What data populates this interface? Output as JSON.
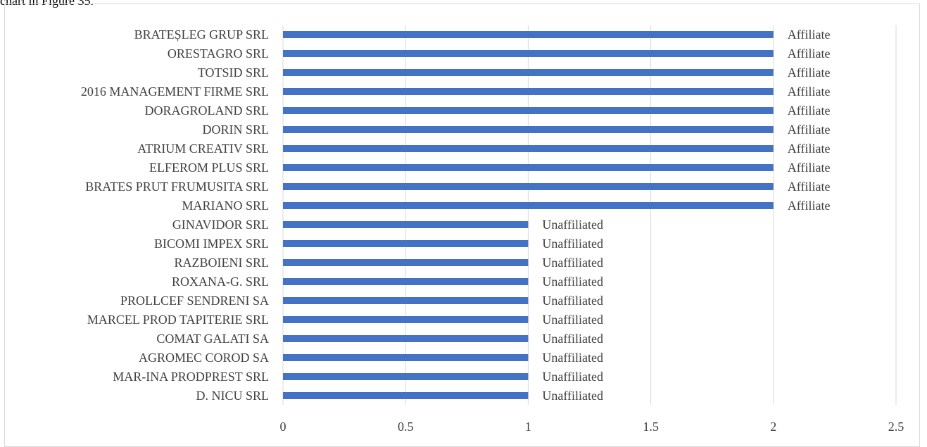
{
  "page": {
    "top_caption": "chart in Figure 35."
  },
  "chart_data": {
    "type": "bar",
    "orientation": "horizontal",
    "categories": [
      "BRATEȘLEG GRUP SRL",
      "ORESTAGRO SRL",
      "TOTSID SRL",
      "2016 MANAGEMENT FIRME SRL",
      "DORAGROLAND SRL",
      "DORIN SRL",
      "ATRIUM CREATIV SRL",
      "ELFEROM PLUS SRL",
      "BRATES PRUT FRUMUSITA SRL",
      "MARIANO SRL",
      "GINAVIDOR SRL",
      "BICOMI IMPEX SRL",
      "RAZBOIENI SRL",
      "ROXANA-G. SRL",
      "PROLLCEF SENDRENI SA",
      "MARCEL PROD TAPITERIE SRL",
      "COMAT GALATI SA",
      "AGROMEC COROD SA",
      "MAR-INA PRODPREST SRL",
      "D. NICU SRL"
    ],
    "values": [
      2,
      2,
      2,
      2,
      2,
      2,
      2,
      2,
      2,
      2,
      1,
      1,
      1,
      1,
      1,
      1,
      1,
      1,
      1,
      1
    ],
    "data_labels": [
      "Affiliate",
      "Affiliate",
      "Affiliate",
      "Affiliate",
      "Affiliate",
      "Affiliate",
      "Affiliate",
      "Affiliate",
      "Affiliate",
      "Affiliate",
      "Unaffiliated",
      "Unaffiliated",
      "Unaffiliated",
      "Unaffiliated",
      "Unaffiliated",
      "Unaffiliated",
      "Unaffiliated",
      "Unaffiliated",
      "Unaffiliated",
      "Unaffiliated"
    ],
    "xlim": [
      0,
      2.5
    ],
    "x_ticks": [
      0,
      0.5,
      1,
      1.5,
      2,
      2.5
    ],
    "x_tick_labels": [
      "0",
      "0.5",
      "1",
      "1.5",
      "2",
      "2.5"
    ],
    "title": "",
    "xlabel": "",
    "ylabel": "",
    "grid": "vertical",
    "legend": "none",
    "bar_color": "#4472c4",
    "grid_color": "#d9d9d9",
    "text_color": "#404040"
  }
}
